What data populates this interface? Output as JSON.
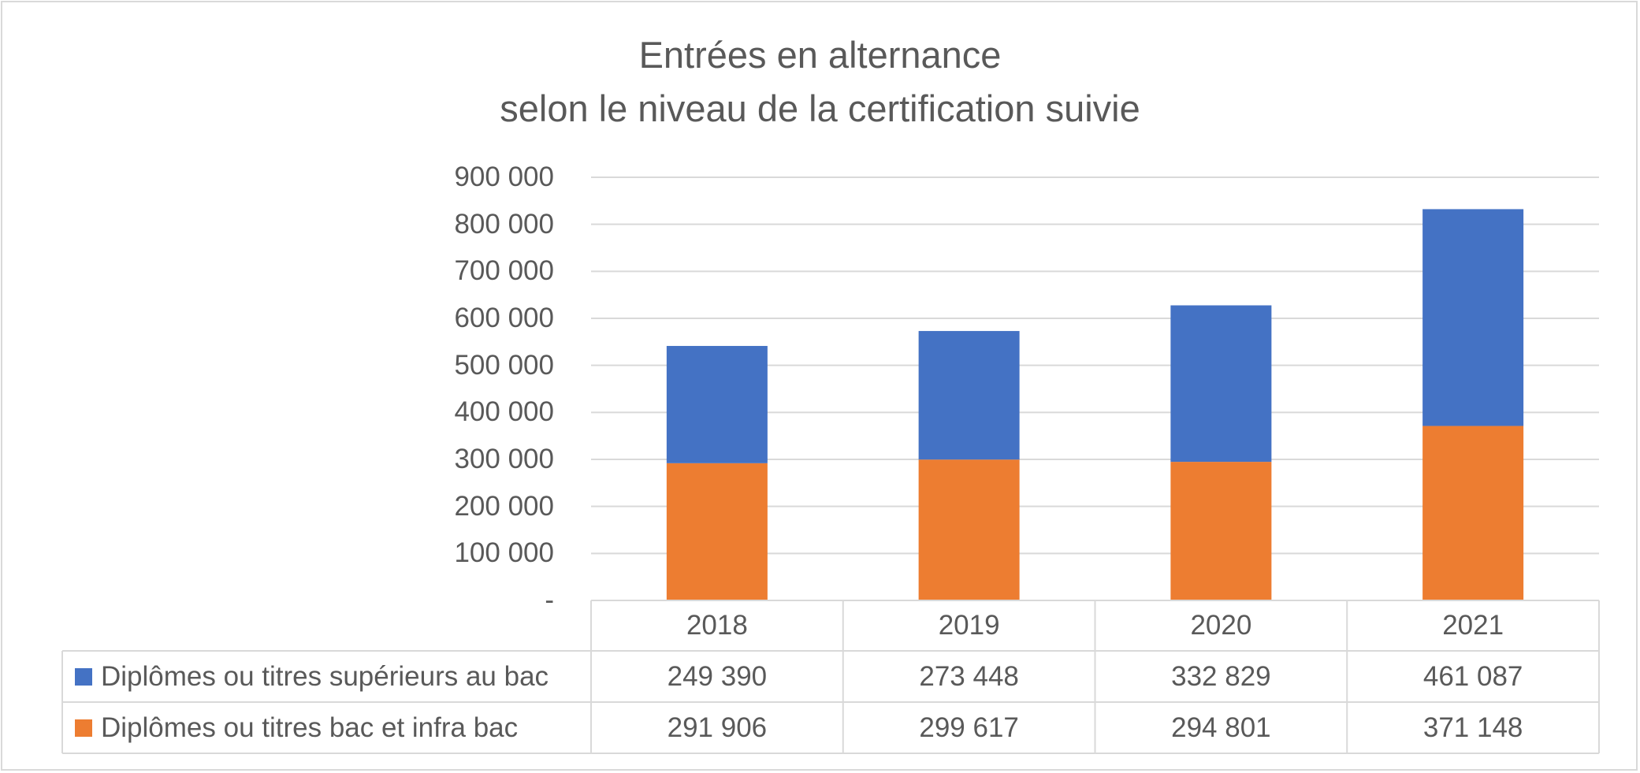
{
  "chart_data": {
    "type": "bar",
    "stacked": true,
    "title": "Entrées en alternance",
    "subtitle": "selon le niveau de la certification suivie",
    "categories": [
      "2018",
      "2019",
      "2020",
      "2021"
    ],
    "ylim": [
      0,
      900000
    ],
    "yticks": [
      {
        "value": 0,
        "label": "-"
      },
      {
        "value": 100000,
        "label": "100 000"
      },
      {
        "value": 200000,
        "label": "200 000"
      },
      {
        "value": 300000,
        "label": "300 000"
      },
      {
        "value": 400000,
        "label": "400 000"
      },
      {
        "value": 500000,
        "label": "500 000"
      },
      {
        "value": 600000,
        "label": "600 000"
      },
      {
        "value": 700000,
        "label": "700 000"
      },
      {
        "value": 800000,
        "label": "800 000"
      },
      {
        "value": 900000,
        "label": "900 000"
      }
    ],
    "grid": true,
    "legend": "data-table",
    "series": [
      {
        "name": "Diplômes ou titres supérieurs au bac",
        "color": "#4472c4",
        "values": [
          249390,
          273448,
          332829,
          461087
        ],
        "labels": [
          "249 390",
          "273 448",
          "332 829",
          "461 087"
        ]
      },
      {
        "name": "Diplômes ou titres bac et infra bac",
        "color": "#ed7d31",
        "values": [
          291906,
          299617,
          294801,
          371148
        ],
        "labels": [
          "291 906",
          "299 617",
          "294 801",
          "371 148"
        ]
      }
    ]
  }
}
